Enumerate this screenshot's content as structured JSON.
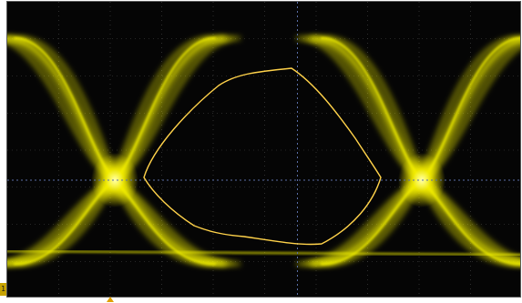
{
  "display": {
    "background_color": "#050505",
    "trace_color": "#f2f000",
    "mask_color": "#ffd24a",
    "grid_color": "#4a4a4a",
    "center_axis_color": "#5a6fa8"
  },
  "channel_marker": {
    "label": "1",
    "color": "#c9a400",
    "icon": "channel-1-marker-icon"
  },
  "trigger_marker": {
    "icon": "trigger-position-arrow-icon",
    "color": "#e0a000"
  },
  "graticule": {
    "divisions_horizontal": 10,
    "divisions_vertical": 8,
    "subdivisions": 5
  }
}
